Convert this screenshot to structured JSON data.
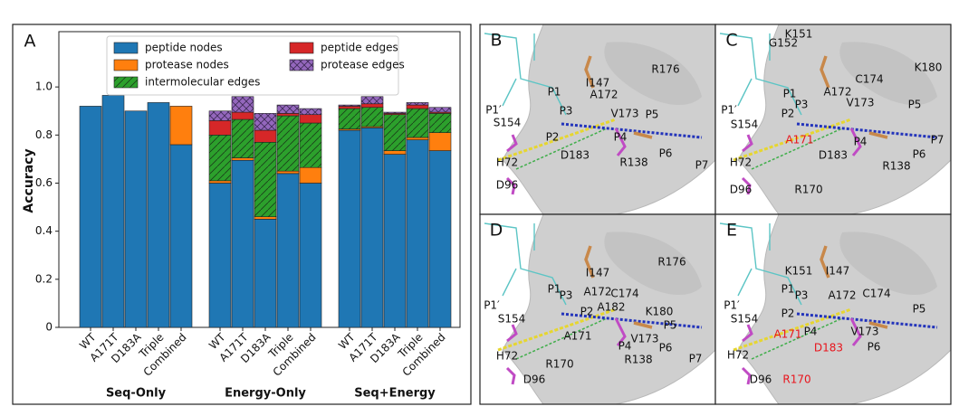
{
  "chart_data": {
    "type": "stacked-bar",
    "panel_letter": "A",
    "ylabel": "Accuracy",
    "ylim": [
      0,
      1.23
    ],
    "yticks": [
      0,
      0.2,
      0.4,
      0.6,
      0.8,
      {
        "value": 1,
        "label": "1.0"
      }
    ],
    "groups": [
      {
        "label": "Seq-Only",
        "categories": [
          "WT",
          "A171T",
          "D183A",
          "Triple",
          "Combined"
        ]
      },
      {
        "label": "Energy-Only",
        "categories": [
          "WT",
          "A171T",
          "D183A",
          "Triple",
          "Combined"
        ]
      },
      {
        "label": "Seq+Energy",
        "categories": [
          "WT",
          "A171T",
          "D183A",
          "Triple",
          "Combined"
        ]
      }
    ],
    "legend": {
      "loc": "upper center",
      "ncol": 2
    },
    "series": [
      {
        "name": "peptide nodes",
        "color": "#1f77b4",
        "hatch": null,
        "values": [
          0.92,
          0.965,
          0.9,
          0.935,
          0.76,
          0.6,
          0.695,
          0.45,
          0.64,
          0.6,
          0.82,
          0.83,
          0.72,
          0.78,
          0.735
        ]
      },
      {
        "name": "protease nodes",
        "color": "#ff7f0e",
        "hatch": null,
        "values": [
          0,
          0,
          0,
          0,
          0.16,
          0.01,
          0.01,
          0.01,
          0.01,
          0.065,
          0.005,
          0.005,
          0.015,
          0.01,
          0.075
        ]
      },
      {
        "name": "intermolecular edges",
        "color": "#2ca02c",
        "hatch": "//",
        "values": [
          0,
          0,
          0,
          0,
          0,
          0.19,
          0.16,
          0.31,
          0.23,
          0.185,
          0.085,
          0.08,
          0.15,
          0.12,
          0.08
        ]
      },
      {
        "name": "peptide edges",
        "color": "#d62728",
        "hatch": null,
        "values": [
          0,
          0,
          0,
          0,
          0,
          0.06,
          0.03,
          0.05,
          0.01,
          0.035,
          0.01,
          0.015,
          0.005,
          0.015,
          0.005
        ]
      },
      {
        "name": "protease edges",
        "color": "#9467bd",
        "hatch": "x",
        "values": [
          0,
          0,
          0,
          0,
          0,
          0.04,
          0.065,
          0.07,
          0.035,
          0.025,
          0.005,
          0.03,
          0.005,
          0.01,
          0.02
        ]
      }
    ]
  },
  "panels": [
    {
      "letter": "B",
      "labels": [
        {
          "text": "P1′"
        },
        {
          "text": "S154"
        },
        {
          "text": "I147"
        },
        {
          "text": "R176"
        },
        {
          "text": "A172"
        },
        {
          "text": "P1"
        },
        {
          "text": "P3"
        },
        {
          "text": "V173"
        },
        {
          "text": "P5"
        },
        {
          "text": "P2"
        },
        {
          "text": "P4"
        },
        {
          "text": "P6"
        },
        {
          "text": "P7"
        },
        {
          "text": "D183"
        },
        {
          "text": "R138"
        },
        {
          "text": "H72"
        },
        {
          "text": "D96"
        }
      ]
    },
    {
      "letter": "C",
      "labels": [
        {
          "text": "K151"
        },
        {
          "text": "G152"
        },
        {
          "text": "K180"
        },
        {
          "text": "C174"
        },
        {
          "text": "A172"
        },
        {
          "text": "P1"
        },
        {
          "text": "P1′"
        },
        {
          "text": "S154"
        },
        {
          "text": "P2"
        },
        {
          "text": "P3"
        },
        {
          "text": "V173"
        },
        {
          "text": "P5"
        },
        {
          "text": "A171",
          "color": "#e8141c"
        },
        {
          "text": "P4"
        },
        {
          "text": "P7"
        },
        {
          "text": "P6"
        },
        {
          "text": "D183"
        },
        {
          "text": "R138"
        },
        {
          "text": "H72"
        },
        {
          "text": "D96"
        },
        {
          "text": "R170"
        }
      ]
    },
    {
      "letter": "D",
      "labels": [
        {
          "text": "I147"
        },
        {
          "text": "R176"
        },
        {
          "text": "C174"
        },
        {
          "text": "K180"
        },
        {
          "text": "P1"
        },
        {
          "text": "P3"
        },
        {
          "text": "A172"
        },
        {
          "text": "A182"
        },
        {
          "text": "P5"
        },
        {
          "text": "P1′"
        },
        {
          "text": "S154"
        },
        {
          "text": "P2"
        },
        {
          "text": "A171"
        },
        {
          "text": "V173"
        },
        {
          "text": "P4"
        },
        {
          "text": "P6"
        },
        {
          "text": "P7"
        },
        {
          "text": "R138"
        },
        {
          "text": "R170"
        },
        {
          "text": "H72"
        },
        {
          "text": "D96"
        }
      ]
    },
    {
      "letter": "E",
      "labels": [
        {
          "text": "K151"
        },
        {
          "text": "I147"
        },
        {
          "text": "C174"
        },
        {
          "text": "P1"
        },
        {
          "text": "P3"
        },
        {
          "text": "A172"
        },
        {
          "text": "P5"
        },
        {
          "text": "P1′"
        },
        {
          "text": "S154"
        },
        {
          "text": "P2"
        },
        {
          "text": "P4"
        },
        {
          "text": "V173"
        },
        {
          "text": "A171",
          "color": "#e8141c"
        },
        {
          "text": "D183",
          "color": "#e8141c"
        },
        {
          "text": "P6"
        },
        {
          "text": "H72"
        },
        {
          "text": "D96"
        },
        {
          "text": "R170",
          "color": "#e8141c"
        }
      ]
    }
  ]
}
